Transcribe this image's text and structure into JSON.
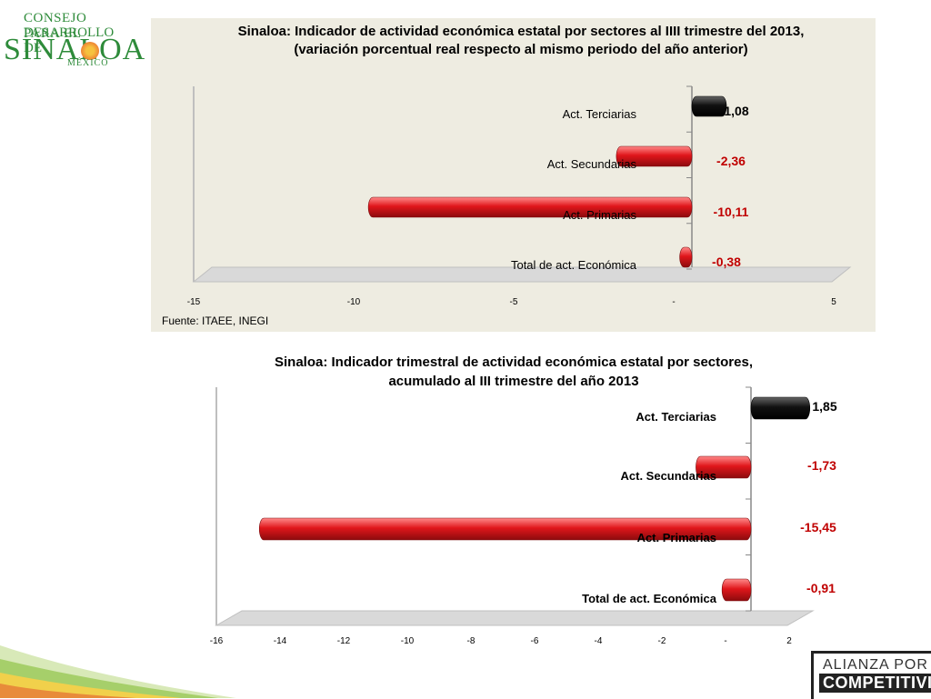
{
  "logo": {
    "line1": "CONSEJO PARA EL",
    "line2": "DESARROLLO DE",
    "line3": "SINALOA",
    "line4": "MÉXICO"
  },
  "source": "Fuente: ITAEE, INEGI",
  "alianza": {
    "line1": "ALIANZA POR LA",
    "line2": "COMPETITIVIDAD"
  },
  "colors": {
    "negative": "#e0161b",
    "positive": "#111111",
    "panel": "#eeece1"
  },
  "chart_data": [
    {
      "type": "bar",
      "orientation": "horizontal",
      "title": [
        "Sinaloa: Indicador de actividad económica  estatal por sectores al IIII trimestre del 2013,",
        "(variación  porcentual real respecto al mismo periodo del año anterior)"
      ],
      "categories": [
        "Act. Terciarias",
        "Act. Secundarias",
        "Act. Primarias",
        "Total de act. Económica"
      ],
      "values": [
        1.08,
        -2.36,
        -10.11,
        -0.38
      ],
      "value_labels": [
        "1,08",
        "-2,36",
        "-10,11",
        "-0,38"
      ],
      "xlim": [
        -15,
        5
      ],
      "ticks": [
        "-15",
        "-10",
        "-5",
        "-",
        "5"
      ],
      "tick_values": [
        -15,
        -10,
        -5,
        0,
        5
      ]
    },
    {
      "type": "bar",
      "orientation": "horizontal",
      "title": [
        "Sinaloa: Indicador  trimestral de actividad económica estatal por sectores,",
        "acumulado al III trimestre del año 2013"
      ],
      "categories": [
        "Act. Terciarias",
        "Act. Secundarias",
        "Act. Primarias",
        "Total de act. Económica"
      ],
      "values": [
        1.85,
        -1.73,
        -15.45,
        -0.91
      ],
      "value_labels": [
        "1,85",
        "-1,73",
        "-15,45",
        "-0,91"
      ],
      "xlim": [
        -16,
        2
      ],
      "ticks": [
        "-16",
        "-14",
        "-12",
        "-10",
        "-8",
        "-6",
        "-4",
        "-2",
        "-",
        "2"
      ],
      "tick_values": [
        -16,
        -14,
        -12,
        -10,
        -8,
        -6,
        -4,
        -2,
        0,
        2
      ]
    }
  ]
}
